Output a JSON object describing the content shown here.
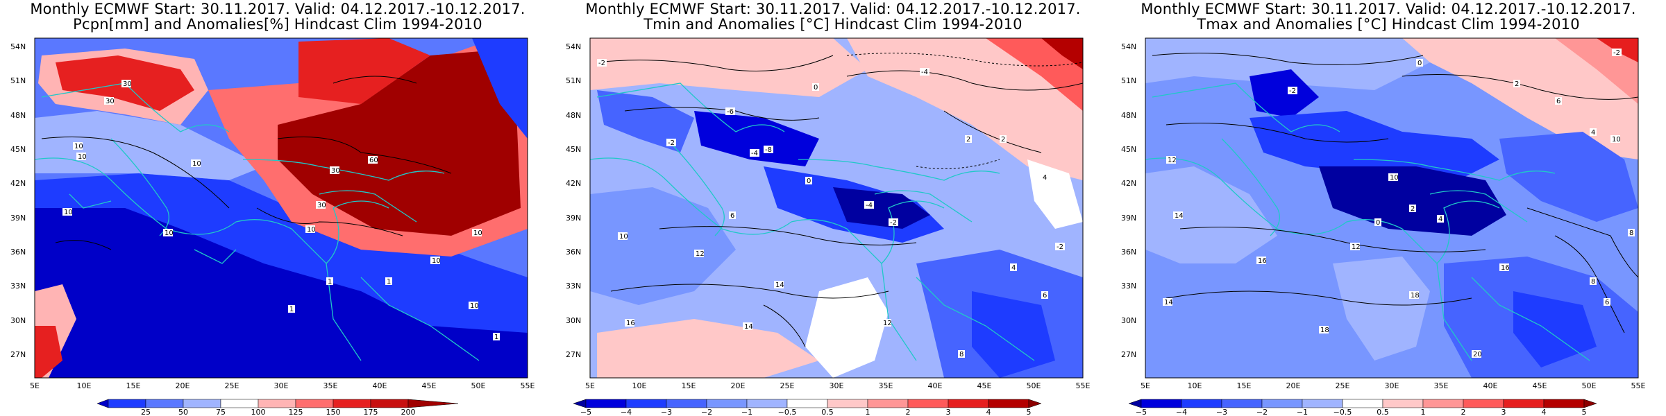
{
  "panels": [
    {
      "title1": "Monthly ECMWF Start: 30.11.2017. Valid: 04.12.2017.-10.12.2017.",
      "title2": "Pcpn[mm] and Anomalies[%] Hindcast Clim 1994-2010",
      "colorbar": {
        "labels": [
          "25",
          "50",
          "75",
          "100",
          "125",
          "150",
          "175",
          "200"
        ],
        "colors": [
          "#0000c8",
          "#1e3cff",
          "#5a78ff",
          "#a0b4ff",
          "#ffffff",
          "#ffb4b4",
          "#ff6e6e",
          "#e62020",
          "#a00000"
        ]
      },
      "contour_labels": [
        "10",
        "10",
        "10",
        "10",
        "10",
        "10",
        "10",
        "10",
        "30",
        "30",
        "30",
        "30",
        "60",
        "1",
        "1",
        "1",
        "1",
        "10"
      ]
    },
    {
      "title1": "Monthly ECMWF Start: 30.11.2017. Valid: 04.12.2017.-10.12.2017.",
      "title2": "Tmin and Anomalies [°C] Hindcast Clim 1994-2010",
      "colorbar": {
        "labels": [
          "−5",
          "−4",
          "−3",
          "−2",
          "−1",
          "−0.5",
          "0.5",
          "1",
          "2",
          "3",
          "4",
          "5"
        ],
        "colors": [
          "#0000a0",
          "#0000dc",
          "#1e3cff",
          "#4664ff",
          "#7896ff",
          "#a0b4ff",
          "#ffffff",
          "#ffc8c8",
          "#ff9696",
          "#ff5a5a",
          "#e61e1e",
          "#b40000",
          "#8c0000"
        ]
      },
      "contour_labels": [
        "-4",
        "-2",
        "0",
        "2",
        "-6",
        "-4",
        "-2",
        "0",
        "2",
        "4",
        "6",
        "-8",
        "-4",
        "-2",
        "10",
        "12",
        "14",
        "16",
        "14",
        "12",
        "4",
        "6",
        "8",
        "-2"
      ]
    },
    {
      "title1": "Monthly ECMWF Start: 30.11.2017. Valid: 04.12.2017.-10.12.2017.",
      "title2": "Tmax and Anomalies [°C] Hindcast Clim 1994-2010",
      "colorbar": {
        "labels": [
          "−5",
          "−4",
          "−3",
          "−2",
          "−1",
          "−0.5",
          "0.5",
          "1",
          "2",
          "3",
          "4",
          "5"
        ],
        "colors": [
          "#0000a0",
          "#0000dc",
          "#1e3cff",
          "#4664ff",
          "#7896ff",
          "#a0b4ff",
          "#ffffff",
          "#ffc8c8",
          "#ff9696",
          "#ff5a5a",
          "#e61e1e",
          "#b40000",
          "#8c0000"
        ]
      },
      "contour_labels": [
        "-2",
        "0",
        "2",
        "4",
        "6",
        "8",
        "10",
        "12",
        "14",
        "16",
        "18",
        "-2",
        "0",
        "2",
        "4",
        "12",
        "14",
        "16",
        "18",
        "20",
        "8",
        "6",
        "10"
      ]
    }
  ],
  "axes": {
    "lat_ticks": [
      "54N",
      "51N",
      "48N",
      "45N",
      "42N",
      "39N",
      "36N",
      "33N",
      "30N",
      "27N"
    ],
    "lon_ticks": [
      "5E",
      "10E",
      "15E",
      "20E",
      "25E",
      "30E",
      "35E",
      "40E",
      "45E",
      "50E",
      "55E"
    ]
  },
  "palette": {
    "deep_red": "#a00000",
    "red": "#e62020",
    "deep_blue": "#0000c8",
    "blue": "#3c5aff",
    "coast": "#20c8c8"
  }
}
